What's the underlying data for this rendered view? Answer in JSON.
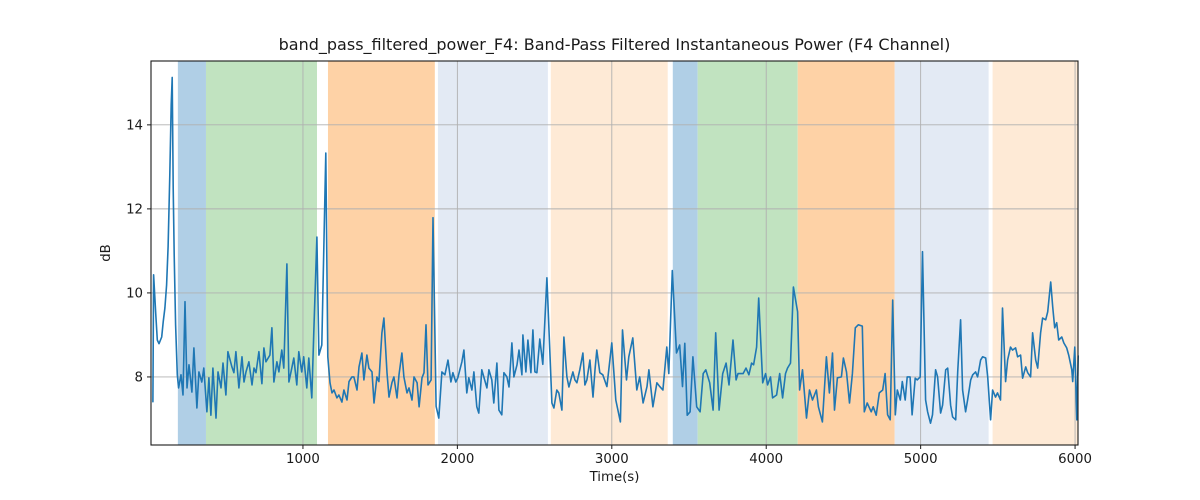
{
  "chart_data": {
    "type": "line",
    "title": "band_pass_filtered_power_F4: Band-Pass Filtered Instantaneous Power (F4 Channel)",
    "xlabel": "Time(s)",
    "ylabel": "dB",
    "xlim": [
      16,
      6019
    ],
    "ylim": [
      6.38,
      15.52
    ],
    "xticks": [
      1000,
      2000,
      3000,
      4000,
      5000,
      6000
    ],
    "yticks": [
      8,
      10,
      12,
      14
    ],
    "grid": true,
    "line_color": "#1f77b4",
    "grid_color": "#b0b0b0",
    "bands": [
      {
        "x0": 190,
        "x1": 372,
        "color": "#b0cfe6"
      },
      {
        "x0": 372,
        "x1": 1091,
        "color": "#c1e3c0"
      },
      {
        "x0": 1162,
        "x1": 1854,
        "color": "#fed2a6"
      },
      {
        "x0": 1874,
        "x1": 2586,
        "color": "#e3eaf4"
      },
      {
        "x0": 2605,
        "x1": 3362,
        "color": "#feead6"
      },
      {
        "x0": 3395,
        "x1": 3556,
        "color": "#b0cfe6"
      },
      {
        "x0": 3556,
        "x1": 4204,
        "color": "#c1e3c0"
      },
      {
        "x0": 4204,
        "x1": 4832,
        "color": "#fed2a6"
      },
      {
        "x0": 4832,
        "x1": 5440,
        "color": "#e3eaf4"
      },
      {
        "x0": 5466,
        "x1": 6016,
        "color": "#feead6"
      }
    ],
    "series": [
      [
        28,
        7.41
      ],
      [
        33,
        10.43
      ],
      [
        47,
        9.48
      ],
      [
        57,
        8.88
      ],
      [
        68,
        8.79
      ],
      [
        85,
        8.95
      ],
      [
        95,
        9.31
      ],
      [
        106,
        9.64
      ],
      [
        117,
        10.19
      ],
      [
        127,
        11.1
      ],
      [
        138,
        12.81
      ],
      [
        147,
        14.48
      ],
      [
        153,
        15.13
      ],
      [
        160,
        12.5
      ],
      [
        166,
        10.9
      ],
      [
        175,
        9.24
      ],
      [
        186,
        8.05
      ],
      [
        195,
        7.74
      ],
      [
        210,
        8.05
      ],
      [
        223,
        7.57
      ],
      [
        236,
        9.79
      ],
      [
        249,
        7.74
      ],
      [
        262,
        8.29
      ],
      [
        281,
        7.64
      ],
      [
        294,
        8.69
      ],
      [
        313,
        7.26
      ],
      [
        326,
        8.12
      ],
      [
        345,
        7.88
      ],
      [
        358,
        8.21
      ],
      [
        378,
        7.17
      ],
      [
        391,
        7.98
      ],
      [
        404,
        7.09
      ],
      [
        417,
        8.21
      ],
      [
        437,
        7.02
      ],
      [
        450,
        8.12
      ],
      [
        469,
        7.74
      ],
      [
        482,
        8.33
      ],
      [
        501,
        7.57
      ],
      [
        514,
        8.6
      ],
      [
        540,
        8.24
      ],
      [
        553,
        8.1
      ],
      [
        566,
        8.6
      ],
      [
        585,
        7.74
      ],
      [
        605,
        8.48
      ],
      [
        618,
        7.88
      ],
      [
        631,
        8.12
      ],
      [
        650,
        8.36
      ],
      [
        670,
        7.81
      ],
      [
        683,
        8.21
      ],
      [
        696,
        8.1
      ],
      [
        715,
        8.6
      ],
      [
        734,
        7.84
      ],
      [
        747,
        8.69
      ],
      [
        760,
        8.36
      ],
      [
        786,
        8.52
      ],
      [
        799,
        9.17
      ],
      [
        812,
        7.88
      ],
      [
        831,
        8.36
      ],
      [
        844,
        8.12
      ],
      [
        863,
        8.64
      ],
      [
        876,
        8.21
      ],
      [
        896,
        10.69
      ],
      [
        909,
        7.88
      ],
      [
        928,
        8.21
      ],
      [
        941,
        8.45
      ],
      [
        960,
        7.81
      ],
      [
        973,
        8.6
      ],
      [
        992,
        8.12
      ],
      [
        1005,
        8.48
      ],
      [
        1025,
        7.74
      ],
      [
        1038,
        8.45
      ],
      [
        1057,
        7.5
      ],
      [
        1070,
        9.07
      ],
      [
        1090,
        11.33
      ],
      [
        1103,
        8.52
      ],
      [
        1122,
        8.76
      ],
      [
        1148,
        13.33
      ],
      [
        1161,
        8.48
      ],
      [
        1175,
        7.86
      ],
      [
        1188,
        7.62
      ],
      [
        1201,
        7.69
      ],
      [
        1220,
        7.5
      ],
      [
        1233,
        7.57
      ],
      [
        1252,
        7.4
      ],
      [
        1265,
        7.69
      ],
      [
        1285,
        7.45
      ],
      [
        1298,
        7.89
      ],
      [
        1317,
        8.0
      ],
      [
        1330,
        8.0
      ],
      [
        1350,
        7.69
      ],
      [
        1363,
        8.24
      ],
      [
        1382,
        8.57
      ],
      [
        1395,
        7.93
      ],
      [
        1414,
        8.52
      ],
      [
        1427,
        8.21
      ],
      [
        1447,
        8.12
      ],
      [
        1460,
        7.38
      ],
      [
        1479,
        8.0
      ],
      [
        1492,
        7.89
      ],
      [
        1511,
        9.05
      ],
      [
        1524,
        9.4
      ],
      [
        1544,
        8.1
      ],
      [
        1557,
        7.52
      ],
      [
        1576,
        7.86
      ],
      [
        1589,
        8.0
      ],
      [
        1609,
        7.5
      ],
      [
        1622,
        8.05
      ],
      [
        1641,
        8.57
      ],
      [
        1654,
        8.0
      ],
      [
        1674,
        7.62
      ],
      [
        1687,
        7.74
      ],
      [
        1706,
        7.45
      ],
      [
        1719,
        8.0
      ],
      [
        1739,
        7.86
      ],
      [
        1752,
        7.29
      ],
      [
        1771,
        7.98
      ],
      [
        1784,
        8.1
      ],
      [
        1797,
        9.24
      ],
      [
        1810,
        7.81
      ],
      [
        1830,
        7.93
      ],
      [
        1842,
        11.79
      ],
      [
        1862,
        7.3
      ],
      [
        1880,
        7.02
      ],
      [
        1900,
        8.12
      ],
      [
        1919,
        8.05
      ],
      [
        1939,
        8.4
      ],
      [
        1958,
        7.88
      ],
      [
        1971,
        8.1
      ],
      [
        1990,
        7.88
      ],
      [
        2003,
        7.98
      ],
      [
        2029,
        8.36
      ],
      [
        2042,
        8.64
      ],
      [
        2061,
        7.62
      ],
      [
        2074,
        7.98
      ],
      [
        2094,
        7.69
      ],
      [
        2107,
        8.12
      ],
      [
        2126,
        7.29
      ],
      [
        2139,
        7.14
      ],
      [
        2158,
        8.17
      ],
      [
        2171,
        8.0
      ],
      [
        2191,
        7.74
      ],
      [
        2204,
        8.17
      ],
      [
        2223,
        7.93
      ],
      [
        2236,
        7.38
      ],
      [
        2256,
        8.33
      ],
      [
        2269,
        7.21
      ],
      [
        2288,
        7.1
      ],
      [
        2301,
        8.1
      ],
      [
        2321,
        8.0
      ],
      [
        2334,
        7.76
      ],
      [
        2353,
        8.81
      ],
      [
        2366,
        8.0
      ],
      [
        2386,
        8.29
      ],
      [
        2399,
        8.64
      ],
      [
        2418,
        8.05
      ],
      [
        2424,
        9.0
      ],
      [
        2444,
        8.12
      ],
      [
        2457,
        8.88
      ],
      [
        2476,
        8.1
      ],
      [
        2489,
        9.12
      ],
      [
        2502,
        8.12
      ],
      [
        2515,
        8.1
      ],
      [
        2534,
        8.9
      ],
      [
        2553,
        8.3
      ],
      [
        2580,
        10.36
      ],
      [
        2612,
        7.38
      ],
      [
        2625,
        7.26
      ],
      [
        2644,
        7.69
      ],
      [
        2657,
        7.62
      ],
      [
        2677,
        7.21
      ],
      [
        2690,
        8.95
      ],
      [
        2709,
        8.0
      ],
      [
        2722,
        7.76
      ],
      [
        2748,
        8.12
      ],
      [
        2761,
        7.93
      ],
      [
        2774,
        7.86
      ],
      [
        2793,
        8.17
      ],
      [
        2813,
        8.57
      ],
      [
        2826,
        7.81
      ],
      [
        2839,
        7.93
      ],
      [
        2858,
        8.4
      ],
      [
        2878,
        7.52
      ],
      [
        2891,
        8.17
      ],
      [
        2903,
        8.64
      ],
      [
        2922,
        8.1
      ],
      [
        2942,
        8.05
      ],
      [
        2968,
        7.77
      ],
      [
        3000,
        8.81
      ],
      [
        3026,
        7.45
      ],
      [
        3056,
        6.93
      ],
      [
        3069,
        9.12
      ],
      [
        3095,
        7.93
      ],
      [
        3110,
        8.48
      ],
      [
        3136,
        8.93
      ],
      [
        3162,
        7.69
      ],
      [
        3181,
        8.0
      ],
      [
        3203,
        7.38
      ],
      [
        3228,
        7.77
      ],
      [
        3240,
        8.17
      ],
      [
        3266,
        7.29
      ],
      [
        3292,
        7.86
      ],
      [
        3311,
        7.77
      ],
      [
        3331,
        7.69
      ],
      [
        3356,
        8.71
      ],
      [
        3369,
        8.08
      ],
      [
        3392,
        10.53
      ],
      [
        3419,
        8.57
      ],
      [
        3440,
        8.76
      ],
      [
        3458,
        7.77
      ],
      [
        3473,
        8.8
      ],
      [
        3488,
        7.09
      ],
      [
        3507,
        7.17
      ],
      [
        3525,
        8.48
      ],
      [
        3550,
        7.29
      ],
      [
        3572,
        7.17
      ],
      [
        3592,
        8.08
      ],
      [
        3609,
        8.17
      ],
      [
        3634,
        7.86
      ],
      [
        3656,
        7.21
      ],
      [
        3673,
        9.05
      ],
      [
        3695,
        7.21
      ],
      [
        3718,
        8.08
      ],
      [
        3740,
        8.33
      ],
      [
        3759,
        7.81
      ],
      [
        3785,
        8.88
      ],
      [
        3805,
        7.93
      ],
      [
        3817,
        8.08
      ],
      [
        3850,
        8.08
      ],
      [
        3869,
        8.21
      ],
      [
        3888,
        8.05
      ],
      [
        3905,
        8.33
      ],
      [
        3918,
        8.29
      ],
      [
        3938,
        8.71
      ],
      [
        3951,
        9.88
      ],
      [
        3977,
        7.86
      ],
      [
        3996,
        8.08
      ],
      [
        4009,
        7.81
      ],
      [
        4028,
        8.0
      ],
      [
        4041,
        7.5
      ],
      [
        4067,
        7.57
      ],
      [
        4087,
        8.08
      ],
      [
        4106,
        7.5
      ],
      [
        4125,
        8.08
      ],
      [
        4138,
        8.21
      ],
      [
        4157,
        8.33
      ],
      [
        4176,
        10.14
      ],
      [
        4203,
        9.55
      ],
      [
        4216,
        7.69
      ],
      [
        4235,
        8.17
      ],
      [
        4261,
        7.02
      ],
      [
        4280,
        7.69
      ],
      [
        4300,
        7.45
      ],
      [
        4325,
        7.69
      ],
      [
        4338,
        7.29
      ],
      [
        4364,
        6.93
      ],
      [
        4390,
        8.48
      ],
      [
        4409,
        7.62
      ],
      [
        4429,
        8.57
      ],
      [
        4442,
        7.21
      ],
      [
        4461,
        7.98
      ],
      [
        4487,
        8.0
      ],
      [
        4500,
        8.45
      ],
      [
        4520,
        8.12
      ],
      [
        4539,
        7.38
      ],
      [
        4558,
        8.08
      ],
      [
        4577,
        9.17
      ],
      [
        4596,
        9.24
      ],
      [
        4622,
        9.21
      ],
      [
        4635,
        7.17
      ],
      [
        4654,
        7.38
      ],
      [
        4680,
        7.17
      ],
      [
        4693,
        7.29
      ],
      [
        4712,
        7.09
      ],
      [
        4732,
        7.62
      ],
      [
        4754,
        7.69
      ],
      [
        4770,
        8.08
      ],
      [
        4786,
        7.1
      ],
      [
        4803,
        6.98
      ],
      [
        4819,
        9.83
      ],
      [
        4836,
        7.1
      ],
      [
        4849,
        7.69
      ],
      [
        4868,
        7.45
      ],
      [
        4881,
        7.89
      ],
      [
        4900,
        7.45
      ],
      [
        4913,
        8.0
      ],
      [
        4932,
        8.0
      ],
      [
        4945,
        7.1
      ],
      [
        4965,
        7.97
      ],
      [
        4978,
        7.93
      ],
      [
        4997,
        8.0
      ],
      [
        5012,
        10.98
      ],
      [
        5032,
        7.45
      ],
      [
        5045,
        7.17
      ],
      [
        5064,
        6.9
      ],
      [
        5077,
        7.1
      ],
      [
        5097,
        8.17
      ],
      [
        5110,
        8.0
      ],
      [
        5129,
        7.14
      ],
      [
        5142,
        7.33
      ],
      [
        5162,
        8.17
      ],
      [
        5175,
        8.21
      ],
      [
        5194,
        7.33
      ],
      [
        5207,
        7.05
      ],
      [
        5227,
        6.98
      ],
      [
        5240,
        8.12
      ],
      [
        5259,
        9.36
      ],
      [
        5272,
        7.69
      ],
      [
        5291,
        7.17
      ],
      [
        5304,
        7.45
      ],
      [
        5324,
        7.93
      ],
      [
        5337,
        8.05
      ],
      [
        5356,
        8.12
      ],
      [
        5369,
        8.0
      ],
      [
        5388,
        8.4
      ],
      [
        5401,
        8.48
      ],
      [
        5421,
        8.45
      ],
      [
        5434,
        8.0
      ],
      [
        5453,
        6.98
      ],
      [
        5466,
        7.69
      ],
      [
        5485,
        7.52
      ],
      [
        5498,
        7.62
      ],
      [
        5517,
        7.45
      ],
      [
        5530,
        9.64
      ],
      [
        5550,
        7.89
      ],
      [
        5563,
        8.4
      ],
      [
        5582,
        8.71
      ],
      [
        5595,
        8.64
      ],
      [
        5615,
        8.69
      ],
      [
        5628,
        8.48
      ],
      [
        5647,
        8.52
      ],
      [
        5660,
        7.97
      ],
      [
        5680,
        8.24
      ],
      [
        5693,
        8.1
      ],
      [
        5712,
        8.0
      ],
      [
        5725,
        9.05
      ],
      [
        5745,
        8.4
      ],
      [
        5758,
        8.21
      ],
      [
        5777,
        9.05
      ],
      [
        5790,
        9.4
      ],
      [
        5810,
        9.36
      ],
      [
        5823,
        9.55
      ],
      [
        5842,
        10.26
      ],
      [
        5855,
        9.67
      ],
      [
        5868,
        9.17
      ],
      [
        5881,
        9.29
      ],
      [
        5894,
        8.88
      ],
      [
        5914,
        8.95
      ],
      [
        5927,
        8.81
      ],
      [
        5946,
        8.69
      ],
      [
        5959,
        8.52
      ],
      [
        5979,
        8.17
      ],
      [
        5985,
        7.89
      ],
      [
        5998,
        8.71
      ],
      [
        6011,
        6.98
      ],
      [
        6020,
        8.5
      ]
    ]
  }
}
